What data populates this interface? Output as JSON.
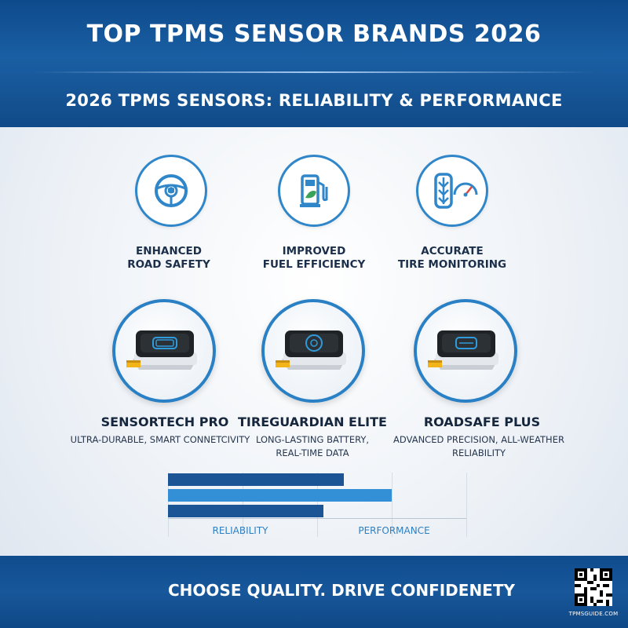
{
  "header": {
    "title": "TOP TPMS SENSOR BRANDS 2026",
    "subtitle": "2026 TPMS SENSORS: RELIABILITY & PERFORMANCE"
  },
  "features": [
    {
      "icon": "steering-wheel-shield-icon",
      "line1": "ENHANCED",
      "line2": "ROAD SAFETY"
    },
    {
      "icon": "fuel-pump-leaf-icon",
      "line1": "IMPROVED",
      "line2": "FUEL EFFICIENCY"
    },
    {
      "icon": "tire-gauge-icon",
      "line1": "ACCURATE",
      "line2": "TIRE MONITORING"
    }
  ],
  "products": [
    {
      "name": "SENSORTECH PRO",
      "desc_line1": "ULTRA-DURABLE, SMART CONNETCIVITY",
      "desc_line2": ""
    },
    {
      "name": "TIREGUARDIAN ELITE",
      "desc_line1": "LONG-LASTING BATTERY,",
      "desc_line2": "REAL-TIME DATA"
    },
    {
      "name": "ROADSAFE PLUS",
      "desc_line1": "ADVANCED PRECISION, ALL-WEATHER RELIABILITY",
      "desc_line2": ""
    }
  ],
  "chart_data": {
    "type": "bar",
    "orientation": "horizontal",
    "axis_labels": [
      "RELIABILITY",
      "PERFORMANCE"
    ],
    "bars": [
      {
        "value": 0.59,
        "color": "#1c5596"
      },
      {
        "value": 0.75,
        "color": "#3390d6"
      },
      {
        "value": 0.52,
        "color": "#1c5596"
      }
    ],
    "xlim": [
      0,
      1
    ],
    "grid": true
  },
  "footer": {
    "slogan": "CHOOSE QUALITY. DRIVE CONFIDENETY",
    "qr_caption": "TPMSGUIDE.COM"
  },
  "colors": {
    "brand_blue": "#114a88",
    "accent_blue": "#2f86c9"
  }
}
